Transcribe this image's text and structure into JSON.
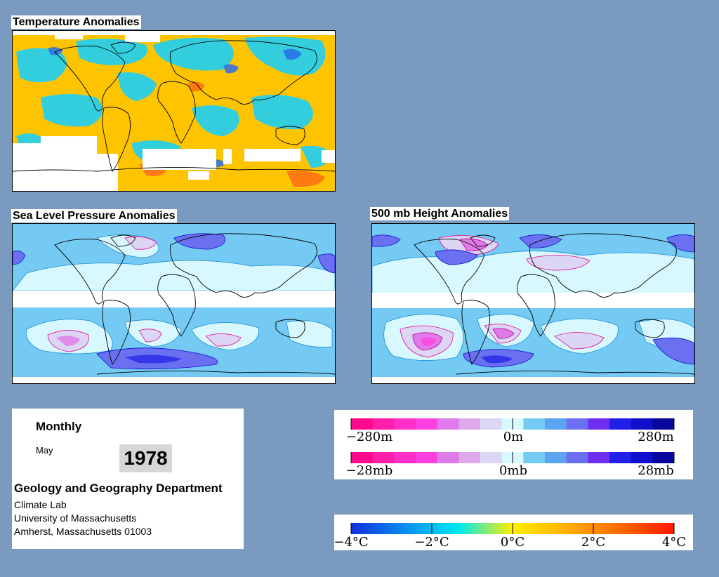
{
  "panels": {
    "temperature": {
      "title": "Temperature Anomalies"
    },
    "slp": {
      "title": "Sea Level Pressure Anomalies"
    },
    "height": {
      "title": "500 mb Height Anomalies"
    }
  },
  "info": {
    "period": "Monthly",
    "month": "May",
    "year": "1978",
    "department": "Geology and Geography Department",
    "lab": "Climate Lab",
    "university": "University of Massachusetts",
    "address": "Amherst, Massachusetts 01003"
  },
  "legends": {
    "height": {
      "labels": [
        "−280m",
        "0m",
        "280m"
      ],
      "colors": [
        "#ff0a8c",
        "#ff1ea8",
        "#ff30c8",
        "#ff40e0",
        "#e07ae8",
        "#e0a8ec",
        "#dcd6f4",
        "#d8f8ff",
        "#74caf2",
        "#5aa4f0",
        "#6a70f0",
        "#6e2ef0",
        "#2020e8",
        "#1010cc",
        "#08089e"
      ]
    },
    "pressure": {
      "labels": [
        "−28mb",
        "0mb",
        "28mb"
      ],
      "colors": [
        "#ff0a8c",
        "#ff1ea8",
        "#ff30c8",
        "#ff40e0",
        "#e07ae8",
        "#e0a8ec",
        "#dcd6f4",
        "#d8f8ff",
        "#74caf2",
        "#5aa4f0",
        "#6a70f0",
        "#6e2ef0",
        "#2020e8",
        "#1010cc",
        "#08089e"
      ]
    },
    "temperature": {
      "labels": [
        "−4°C",
        "−2°C",
        "0°C",
        "2°C",
        "4°C"
      ],
      "gradient_stops": [
        "#1430e0",
        "#0a8cf0",
        "#00e8f0",
        "#ffee00",
        "#ffb000",
        "#ff6a00",
        "#ff1800"
      ]
    }
  },
  "colors": {
    "background": "#7b9ac0",
    "land_outline": "#000000",
    "no_data": "#ffffff"
  }
}
